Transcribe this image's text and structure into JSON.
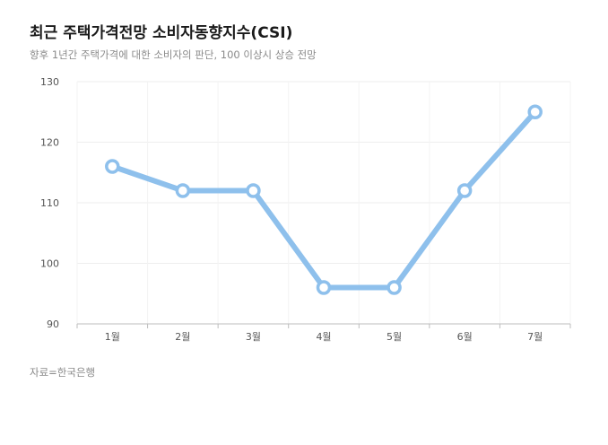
{
  "header": {
    "title": "최근 주택가격전망 소비자동향지수(CSI)",
    "subtitle": "향후 1년간 주택가격에 대한 소비자의 판단, 100 이상시 상승 전망"
  },
  "footer": {
    "source": "자료=한국은행"
  },
  "chart_data": {
    "type": "line",
    "title": "최근 주택가격전망 소비자동향지수(CSI)",
    "subtitle": "향후 1년간 주택가격에 대한 소비자의 판단, 100 이상시 상승 전망",
    "categories": [
      "1월",
      "2월",
      "3월",
      "4월",
      "5월",
      "6월",
      "7월"
    ],
    "series": [
      {
        "values": [
          116,
          112,
          112,
          96,
          96,
          112,
          125
        ],
        "color": "#8ec0ec"
      }
    ],
    "ylim": [
      90,
      130
    ],
    "yticks": [
      90,
      100,
      110,
      120,
      130
    ],
    "grid": true,
    "legend": "none",
    "xlabel": "",
    "ylabel": ""
  }
}
